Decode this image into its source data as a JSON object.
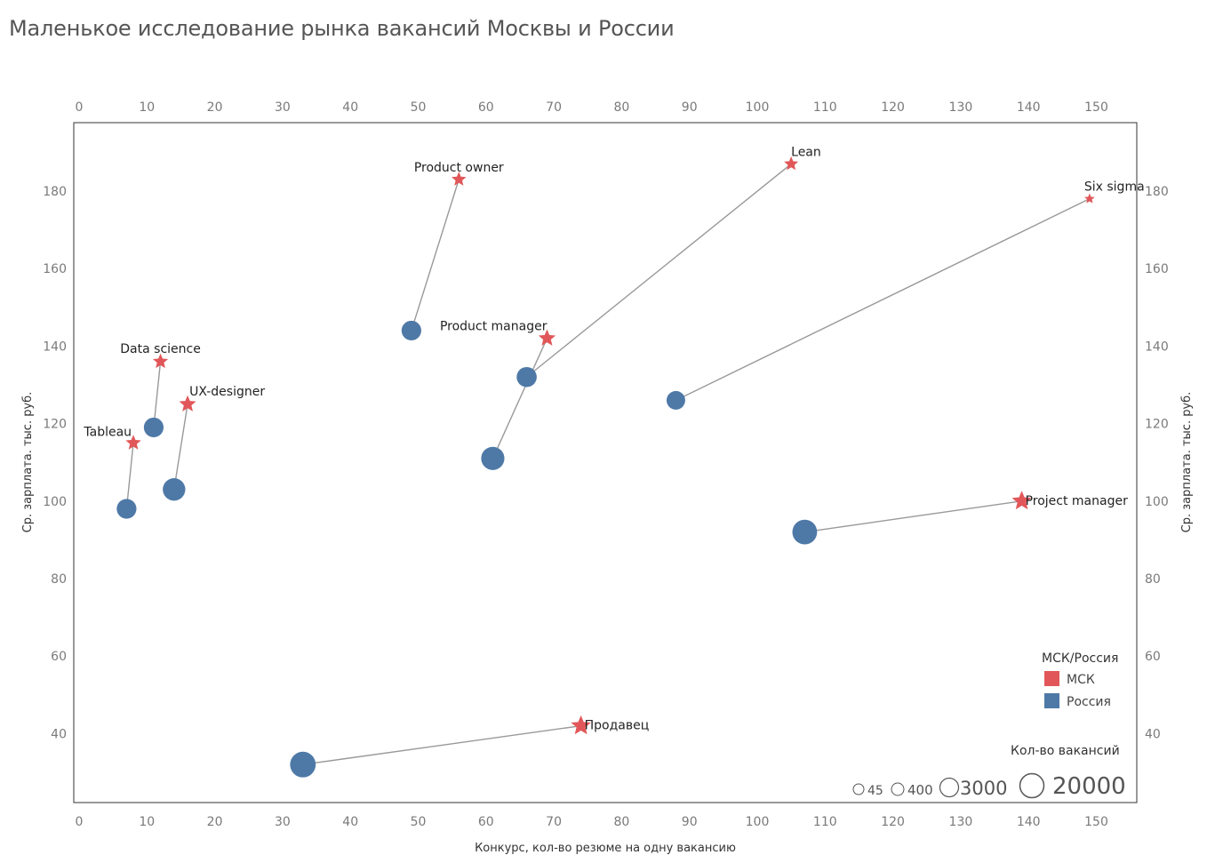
{
  "title": "Маленькое исследование рынка вакансий Москвы и России",
  "chart_data": {
    "type": "scatter",
    "xlabel": "Конкурс, кол-во резюме на одну вакансию",
    "ylabel": "Ср. зарплата. тыс. руб.",
    "xlim": [
      0,
      157
    ],
    "ylim": [
      25,
      195
    ],
    "xticks": [
      0,
      10,
      20,
      30,
      40,
      50,
      60,
      70,
      80,
      90,
      100,
      110,
      120,
      130,
      140,
      150
    ],
    "yticks": [
      40,
      60,
      80,
      100,
      120,
      140,
      160,
      180
    ],
    "grid": false,
    "series": [
      {
        "name": "МСК",
        "color": "#e15759",
        "marker": "star"
      },
      {
        "name": "Россия",
        "color": "#4e79a7",
        "marker": "circle"
      }
    ],
    "color_legend_title": "МСК/Россия",
    "size_legend_title": "Кол-во вакансий",
    "size_legend": [
      {
        "label": "45",
        "value": 45
      },
      {
        "label": "400",
        "value": 400
      },
      {
        "label": "3000",
        "value": 3000
      },
      {
        "label": "20000",
        "value": 20000
      }
    ],
    "points": [
      {
        "name": "Tableau",
        "msk": {
          "x": 8,
          "y": 115,
          "vacancies": 400
        },
        "ru": {
          "x": 7,
          "y": 98,
          "vacancies": 700
        }
      },
      {
        "name": "Data science",
        "msk": {
          "x": 12,
          "y": 136,
          "vacancies": 400
        },
        "ru": {
          "x": 11,
          "y": 119,
          "vacancies": 700
        }
      },
      {
        "name": "UX-designer",
        "msk": {
          "x": 16,
          "y": 125,
          "vacancies": 800
        },
        "ru": {
          "x": 14,
          "y": 103,
          "vacancies": 1500
        }
      },
      {
        "name": "Product owner",
        "msk": {
          "x": 56,
          "y": 183,
          "vacancies": 300
        },
        "ru": {
          "x": 49,
          "y": 144,
          "vacancies": 700
        }
      },
      {
        "name": "Product manager",
        "msk": {
          "x": 69,
          "y": 142,
          "vacancies": 900
        },
        "ru": {
          "x": 61,
          "y": 111,
          "vacancies": 2000
        }
      },
      {
        "name": "Lean",
        "msk": {
          "x": 105,
          "y": 187,
          "vacancies": 250
        },
        "ru": {
          "x": 66,
          "y": 132,
          "vacancies": 800
        }
      },
      {
        "name": "Six sigma",
        "msk": {
          "x": 149,
          "y": 178,
          "vacancies": 45
        },
        "ru": {
          "x": 88,
          "y": 126,
          "vacancies": 450
        }
      },
      {
        "name": "Project manager",
        "msk": {
          "x": 139,
          "y": 100,
          "vacancies": 2500
        },
        "ru": {
          "x": 107,
          "y": 92,
          "vacancies": 3500
        }
      },
      {
        "name": "Продавец",
        "msk": {
          "x": 74,
          "y": 42,
          "vacancies": 3000
        },
        "ru": {
          "x": 33,
          "y": 32,
          "vacancies": 5000
        }
      }
    ]
  }
}
